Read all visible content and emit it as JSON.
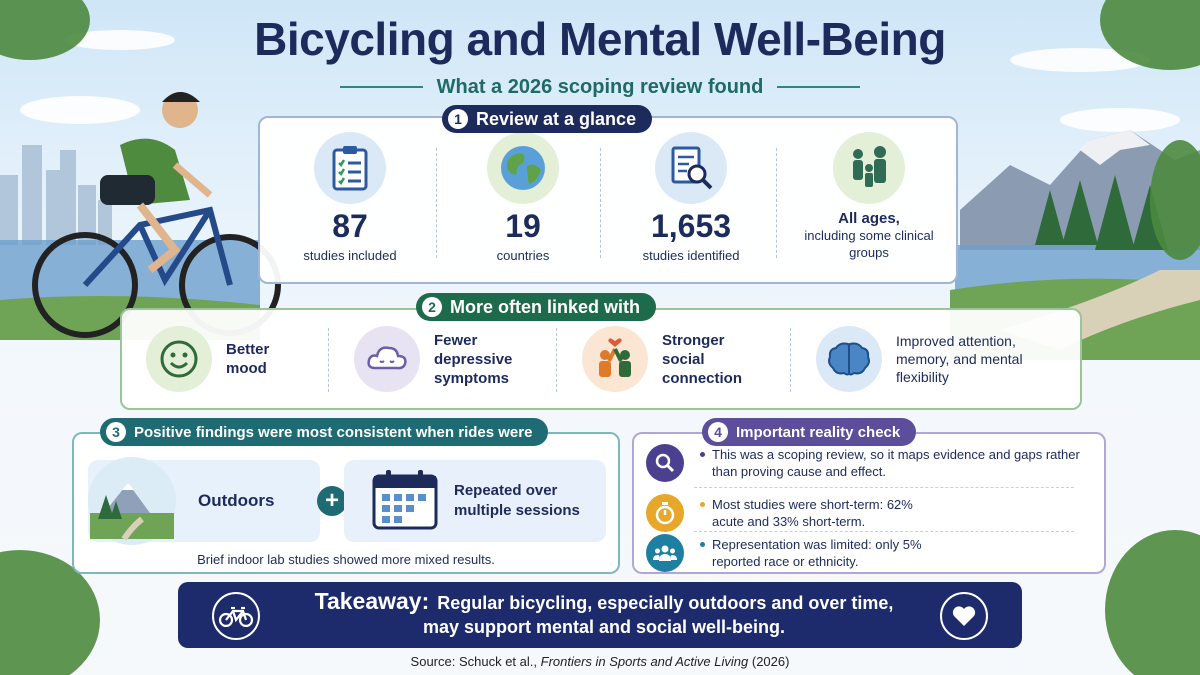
{
  "title": "Bicycling and Mental Well-Being",
  "subtitle": "What a 2026 scoping review found",
  "sections": {
    "glance": {
      "number": "1",
      "heading": "Review at a glance",
      "stats": [
        {
          "icon": "clipboard-checklist-icon",
          "value": "87",
          "label": "studies included"
        },
        {
          "icon": "globe-icon",
          "value": "19",
          "label": "countries"
        },
        {
          "icon": "document-search-icon",
          "value": "1,653",
          "label": "studies identified"
        },
        {
          "icon": "family-people-icon",
          "value_line": "All ages,",
          "label": "including some clinical groups"
        }
      ]
    },
    "linked": {
      "number": "2",
      "heading": "More often linked with",
      "items": [
        {
          "icon": "smiley-face-icon",
          "label": "Better mood"
        },
        {
          "icon": "cloud-icon",
          "label": "Fewer depressive symptoms"
        },
        {
          "icon": "high-five-people-icon",
          "label": "Stronger social connection"
        },
        {
          "icon": "brain-icon",
          "label": "Improved attention, memory, and mental flexibility"
        }
      ]
    },
    "consistent": {
      "number": "3",
      "heading": "Positive findings were most consistent when rides were",
      "option_a": "Outdoors",
      "option_b": "Repeated over multiple sessions",
      "note": "Brief indoor lab studies showed more mixed results."
    },
    "reality": {
      "number": "4",
      "heading": "Important reality check",
      "items": [
        {
          "icon": "magnifier-icon",
          "text": "This was a scoping review, so it maps evidence and gaps rather than proving cause and effect."
        },
        {
          "icon": "stopwatch-icon",
          "text": "Most studies were short-term: 62% acute and 33% short-term."
        },
        {
          "icon": "group-people-icon",
          "text": "Representation was limited: only 5% reported race or ethnicity."
        }
      ]
    }
  },
  "takeaway": {
    "label": "Takeaway:",
    "line1": "Regular bicycling, especially outdoors and over time,",
    "line2": "may support mental and social well-being."
  },
  "source": {
    "prefix": "Source: Schuck et al., ",
    "journal": "Frontiers in Sports and Active Living",
    "suffix": " (2026)"
  },
  "colors": {
    "navy": "#1d2a5c",
    "teal": "#1f6b63",
    "green": "#1d6b4a",
    "purple": "#5d4e9c",
    "takeaway_bg": "#1d2a6b"
  }
}
